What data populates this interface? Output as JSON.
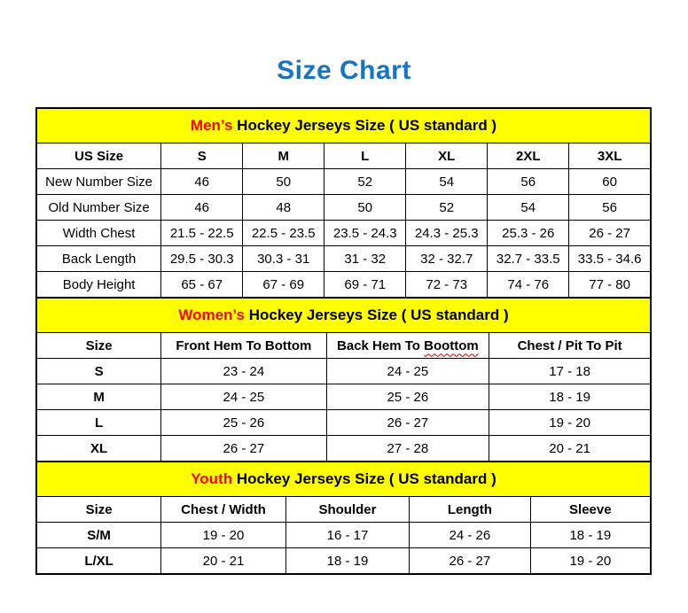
{
  "page": {
    "title": "Size Chart"
  },
  "colors": {
    "title_blue": "#1575C4",
    "band_yellow": "#FFFF00",
    "highlight_red": "#FF0000",
    "squiggle_red": "#C00000",
    "border_black": "#000000"
  },
  "tables": [
    {
      "id": "mens",
      "header": {
        "highlight": "Men’s",
        "rest": " Hockey Jerseys Size ( US standard )"
      },
      "columns": [
        "US Size",
        "S",
        "M",
        "L",
        "XL",
        "2XL",
        "3XL"
      ],
      "rows": [
        [
          "New Number Size",
          "46",
          "50",
          "52",
          "54",
          "56",
          "60"
        ],
        [
          "Old Number Size",
          "46",
          "48",
          "50",
          "52",
          "54",
          "56"
        ],
        [
          "Width Chest",
          "21.5 - 22.5",
          "22.5 - 23.5",
          "23.5 - 24.3",
          "24.3 - 25.3",
          "25.3 - 26",
          "26 - 27"
        ],
        [
          "Back Length",
          "29.5 - 30.3",
          "30.3 - 31",
          "31 - 32",
          "32 - 32.7",
          "32.7 - 33.5",
          "33.5 - 34.6"
        ],
        [
          "Body Height",
          "65 - 67",
          "67 - 69",
          "69 - 71",
          "72 - 73",
          "74 - 76",
          "77 - 80"
        ]
      ]
    },
    {
      "id": "womens",
      "header": {
        "highlight": "Women’s",
        "rest": " Hockey Jerseys Size ( US standard )"
      },
      "columns": [
        "Size",
        "Front Hem To Bottom",
        "Back Hem To Boottom",
        "Chest / Pit To Pit"
      ],
      "spellcheck_underline": {
        "column_index": 2,
        "prefix": "Back Hem To ",
        "word": "Boottom"
      },
      "rows": [
        [
          "S",
          "23 - 24",
          "24 - 25",
          "17 - 18"
        ],
        [
          "M",
          "24 - 25",
          "25 - 26",
          "18 - 19"
        ],
        [
          "L",
          "25 - 26",
          "26 - 27",
          "19 - 20"
        ],
        [
          "XL",
          "26 - 27",
          "27 - 28",
          "20 - 21"
        ]
      ]
    },
    {
      "id": "youth",
      "header": {
        "highlight": "Youth",
        "rest": " Hockey Jerseys Size ( US standard )"
      },
      "columns": [
        "Size",
        "Chest / Width",
        "Shoulder",
        "Length",
        "Sleeve"
      ],
      "rows": [
        [
          "S/M",
          "19 - 20",
          "16 - 17",
          "24 - 26",
          "18 - 19"
        ],
        [
          "L/XL",
          "20 - 21",
          "18 - 19",
          "26 - 27",
          "19 - 20"
        ]
      ]
    }
  ]
}
